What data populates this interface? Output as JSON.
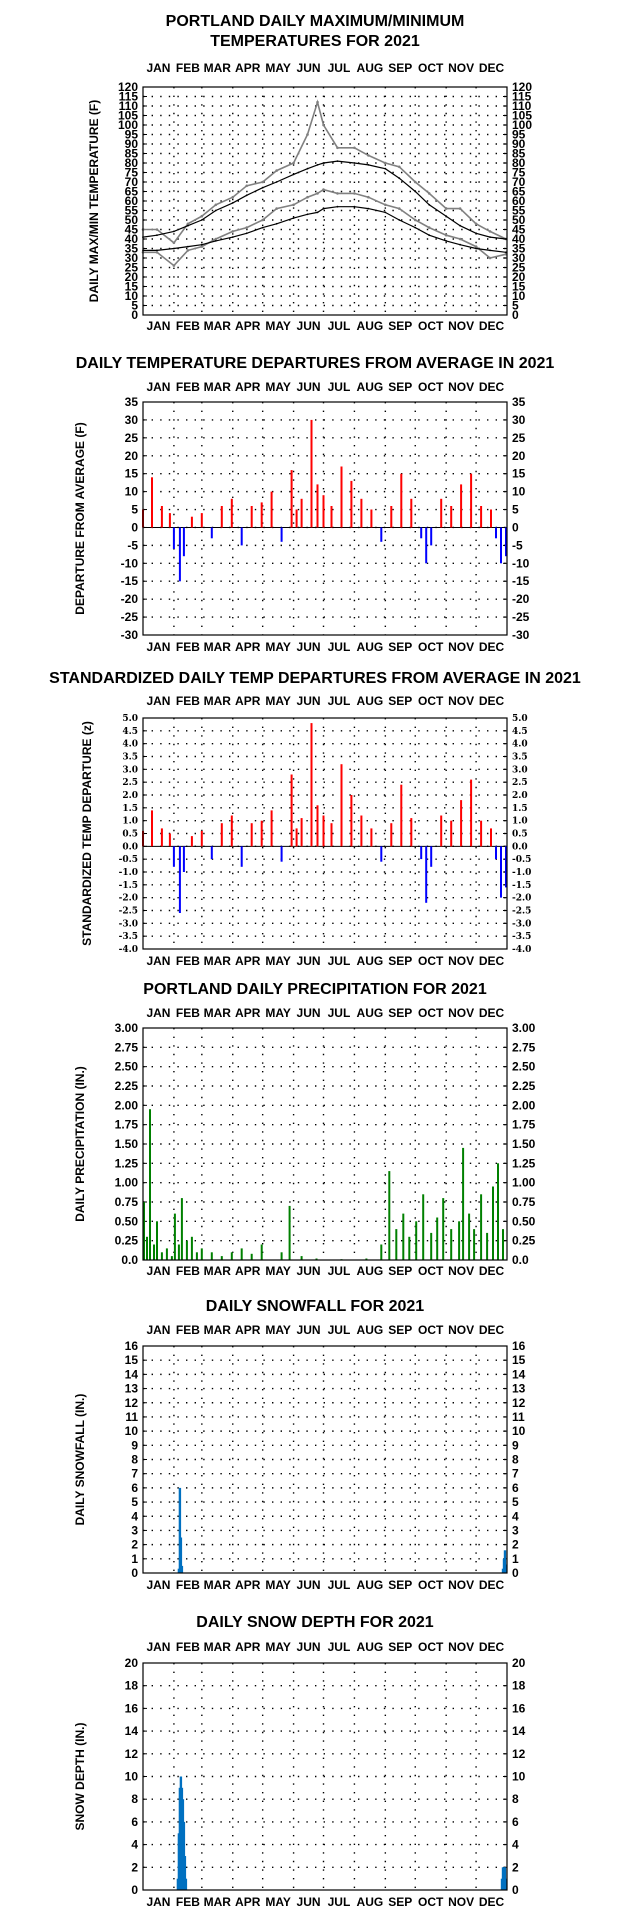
{
  "months": [
    "JAN",
    "FEB",
    "MAR",
    "APR",
    "MAY",
    "JUN",
    "JUL",
    "AUG",
    "SEP",
    "OCT",
    "NOV",
    "DEC"
  ],
  "colors": {
    "maxmin": "#808080",
    "normal": "#000000",
    "above": "#ff0000",
    "below": "#0000ff",
    "precip": "#008000",
    "snow": "#0070c0"
  },
  "chart_data": [
    {
      "type": "line",
      "title": [
        "PORTLAND DAILY MAXIMUM/MINIMUM",
        "TEMPERATURES FOR 2021"
      ],
      "ylabel": "DAILY MAX/MIN TEMPERATURE (F)",
      "ylim": [
        0,
        120
      ],
      "yticks": [
        "0",
        "5",
        "10",
        "15",
        "20",
        "25",
        "30",
        "35",
        "40",
        "45",
        "50",
        "55",
        "60",
        "65",
        "70",
        "75",
        "80",
        "85",
        "90",
        "95",
        "100",
        "105",
        "110",
        "115",
        "120"
      ],
      "x": [
        1,
        15,
        32,
        46,
        60,
        74,
        91,
        105,
        121,
        135,
        152,
        166,
        176,
        182,
        196,
        213,
        227,
        244,
        258,
        274,
        288,
        305,
        319,
        335,
        349,
        365
      ],
      "series": [
        {
          "key": "max",
          "values": [
            45,
            45,
            38,
            48,
            52,
            58,
            62,
            68,
            70,
            76,
            80,
            95,
            112,
            100,
            88,
            88,
            84,
            80,
            78,
            70,
            64,
            56,
            56,
            48,
            44,
            40
          ]
        },
        {
          "key": "min",
          "values": [
            33,
            33,
            26,
            34,
            36,
            40,
            44,
            46,
            50,
            56,
            58,
            62,
            64,
            66,
            64,
            64,
            62,
            58,
            56,
            50,
            46,
            42,
            40,
            36,
            30,
            32
          ]
        },
        {
          "key": "normal_max",
          "values": [
            41,
            42,
            44,
            47,
            50,
            55,
            59,
            63,
            67,
            70,
            74,
            77,
            79,
            80,
            81,
            80,
            79,
            77,
            72,
            65,
            58,
            52,
            47,
            43,
            41,
            40
          ]
        },
        {
          "key": "normal_min",
          "values": [
            34,
            34,
            35,
            36,
            37,
            39,
            41,
            43,
            46,
            48,
            51,
            53,
            54,
            56,
            57,
            57,
            56,
            54,
            50,
            46,
            42,
            39,
            37,
            35,
            34,
            33
          ]
        }
      ]
    },
    {
      "type": "bar",
      "title": "DAILY TEMPERATURE DEPARTURES FROM AVERAGE IN 2021",
      "ylabel": "DEPARTURE FROM AVERAGE (F)",
      "ylim": [
        -30,
        35
      ],
      "yticks": [
        "-30",
        "-25",
        "-20",
        "-15",
        "-10",
        "-5",
        "0",
        "5",
        "10",
        "15",
        "20",
        "25",
        "30",
        "35"
      ],
      "x": [
        1,
        10,
        20,
        28,
        32,
        38,
        42,
        50,
        60,
        70,
        80,
        90,
        100,
        110,
        120,
        130,
        140,
        150,
        155,
        160,
        170,
        176,
        182,
        190,
        200,
        210,
        220,
        230,
        240,
        250,
        260,
        270,
        280,
        285,
        290,
        300,
        310,
        320,
        330,
        340,
        350,
        355,
        360,
        365
      ],
      "values": [
        5,
        14,
        6,
        4,
        -6,
        -15,
        -8,
        3,
        4,
        -3,
        6,
        8,
        -5,
        6,
        7,
        10,
        -4,
        16,
        5,
        8,
        30,
        12,
        9,
        6,
        17,
        13,
        8,
        5,
        -4,
        6,
        15,
        8,
        -3,
        -10,
        -5,
        8,
        6,
        12,
        15,
        6,
        5,
        -3,
        -10,
        -8
      ]
    },
    {
      "type": "bar",
      "title": "STANDARDIZED DAILY TEMP DEPARTURES FROM AVERAGE IN 2021",
      "ylabel": "STANDARDIZED TEMP DEPARTURE (z)",
      "ylim": [
        -4,
        5
      ],
      "yticks": [
        "-4.0",
        "-3.5",
        "-3.0",
        "-2.5",
        "-2.0",
        "-1.5",
        "-1.0",
        "-0.5",
        "0.0",
        "0.5",
        "1.0",
        "1.5",
        "2.0",
        "2.5",
        "3.0",
        "3.5",
        "4.0",
        "4.5",
        "5.0"
      ],
      "x": [
        1,
        10,
        20,
        28,
        32,
        38,
        42,
        50,
        60,
        70,
        80,
        90,
        100,
        110,
        120,
        130,
        140,
        150,
        155,
        160,
        170,
        176,
        182,
        190,
        200,
        210,
        220,
        230,
        240,
        250,
        260,
        270,
        280,
        285,
        290,
        300,
        310,
        320,
        330,
        340,
        350,
        355,
        360,
        365
      ],
      "values": [
        0.6,
        1.4,
        0.7,
        0.5,
        -0.8,
        -2.6,
        -1.0,
        0.4,
        0.6,
        -0.5,
        0.9,
        1.2,
        -0.8,
        0.9,
        1.0,
        1.4,
        -0.6,
        2.8,
        0.7,
        1.1,
        4.8,
        1.6,
        1.2,
        0.9,
        3.2,
        2.0,
        1.2,
        0.7,
        -0.6,
        0.9,
        2.4,
        1.1,
        -0.5,
        -2.2,
        -0.8,
        1.2,
        1.0,
        1.8,
        2.6,
        1.0,
        0.7,
        -0.5,
        -2.0,
        -1.6
      ]
    },
    {
      "type": "bar",
      "title": "PORTLAND DAILY PRECIPITATION FOR 2021",
      "ylabel": "DAILY PRECIPITATION (IN.)",
      "ylim": [
        0,
        3.0
      ],
      "yticks": [
        "0.0",
        "0.25",
        "0.50",
        "0.75",
        "1.00",
        "1.25",
        "1.50",
        "1.75",
        "2.00",
        "2.25",
        "2.50",
        "2.75",
        "3.00"
      ],
      "x": [
        2,
        5,
        8,
        12,
        15,
        20,
        25,
        30,
        33,
        37,
        40,
        45,
        50,
        55,
        60,
        70,
        80,
        90,
        100,
        110,
        120,
        140,
        148,
        160,
        175,
        200,
        225,
        240,
        248,
        255,
        262,
        268,
        275,
        282,
        290,
        296,
        302,
        310,
        318,
        322,
        328,
        333,
        340,
        346,
        352,
        357,
        362
      ],
      "values": [
        0.75,
        0.3,
        1.95,
        0.2,
        0.5,
        0.1,
        0.15,
        0.05,
        0.6,
        0.2,
        0.8,
        0.25,
        0.3,
        0.1,
        0.15,
        0.1,
        0.05,
        0.1,
        0.15,
        0.08,
        0.2,
        0.1,
        0.7,
        0.05,
        0.02,
        0.01,
        0.02,
        0.2,
        1.15,
        0.4,
        0.6,
        0.3,
        0.5,
        0.85,
        0.35,
        0.55,
        0.8,
        0.4,
        0.5,
        1.45,
        0.6,
        0.4,
        0.85,
        0.35,
        0.95,
        1.25,
        0.4
      ]
    },
    {
      "type": "bar",
      "title": "DAILY SNOWFALL FOR 2021",
      "ylabel": "DAILY SNOWFALL (IN.)",
      "ylim": [
        0,
        16
      ],
      "yticks": [
        "0",
        "1",
        "2",
        "3",
        "4",
        "5",
        "6",
        "7",
        "8",
        "9",
        "10",
        "11",
        "12",
        "13",
        "14",
        "15",
        "16"
      ],
      "x": [
        37,
        38,
        39,
        40,
        362,
        363,
        364,
        365
      ],
      "values": [
        0.3,
        6.0,
        2.5,
        0.5,
        0.3,
        1.0,
        1.6,
        0.6
      ]
    },
    {
      "type": "bar",
      "title": "DAILY SNOW DEPTH FOR 2021",
      "ylabel": "SNOW DEPTH (IN.)",
      "ylim": [
        0,
        20
      ],
      "yticks": [
        "0",
        "2",
        "4",
        "6",
        "8",
        "10",
        "12",
        "14",
        "16",
        "18",
        "20"
      ],
      "x": [
        36,
        37,
        38,
        39,
        40,
        41,
        42,
        43,
        44,
        361,
        362,
        363,
        364,
        365
      ],
      "values": [
        1,
        5,
        9,
        10,
        9,
        8,
        6,
        3,
        1,
        1,
        2,
        2,
        2,
        1
      ]
    }
  ]
}
